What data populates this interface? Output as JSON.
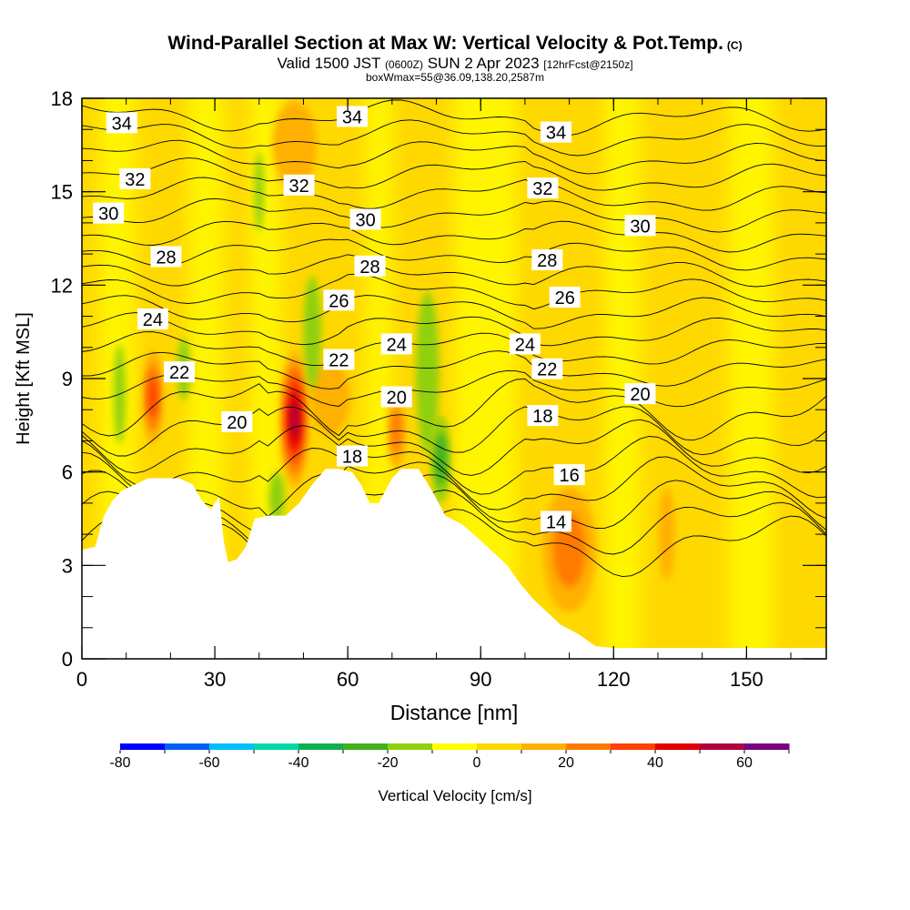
{
  "header": {
    "title": "Wind-Parallel Section at Max W: Vertical Velocity & Pot.Temp.",
    "title_mark": "(C)",
    "valid_prefix": "Valid 1500 JST",
    "valid_z": "(0600Z)",
    "valid_date": "SUN 2 Apr 2023",
    "valid_fcst": "[12hrFcst@2150z]",
    "box_info": "boxWmax=55@36.09,138.20,2587m"
  },
  "chart_data": {
    "type": "heatmap",
    "xlabel": "Distance [nm]",
    "ylabel": "Height [Kft MSL]",
    "xlim": [
      0,
      168
    ],
    "ylim": [
      0,
      18
    ],
    "x_ticks": [
      0,
      30,
      60,
      90,
      120,
      150
    ],
    "y_ticks": [
      0,
      3,
      6,
      9,
      12,
      15,
      18
    ],
    "colorbar": {
      "label": "Vertical Velocity [cm/s]",
      "range": [
        -80,
        70
      ],
      "step": 10,
      "tick_values": [
        -80,
        -60,
        -40,
        -20,
        0,
        20,
        40,
        60
      ],
      "colors": [
        "#0000ff",
        "#0060f0",
        "#00c0ff",
        "#00d8a8",
        "#10b050",
        "#40b020",
        "#90d010",
        "#ffff00",
        "#ffd800",
        "#ffb000",
        "#ff7a00",
        "#ff4000",
        "#e00000",
        "#b00040",
        "#7a0080"
      ]
    },
    "terrain": [
      [
        0,
        3.5
      ],
      [
        3,
        3.6
      ],
      [
        5,
        4.6
      ],
      [
        7,
        5.1
      ],
      [
        9,
        5.4
      ],
      [
        12,
        5.6
      ],
      [
        15,
        5.8
      ],
      [
        18,
        5.8
      ],
      [
        22,
        5.8
      ],
      [
        25,
        5.6
      ],
      [
        27,
        5.1
      ],
      [
        29,
        4.8
      ],
      [
        31,
        5.2
      ],
      [
        32,
        3.8
      ],
      [
        33,
        3.1
      ],
      [
        35,
        3.2
      ],
      [
        37,
        3.6
      ],
      [
        39,
        4.5
      ],
      [
        42,
        4.6
      ],
      [
        46,
        4.6
      ],
      [
        49,
        5.0
      ],
      [
        52,
        5.6
      ],
      [
        55,
        6.1
      ],
      [
        58,
        6.1
      ],
      [
        61,
        6.0
      ],
      [
        63,
        5.6
      ],
      [
        65,
        5.0
      ],
      [
        67,
        5.0
      ],
      [
        70,
        5.8
      ],
      [
        72,
        6.1
      ],
      [
        76,
        6.1
      ],
      [
        79,
        5.4
      ],
      [
        82,
        4.6
      ],
      [
        86,
        4.3
      ],
      [
        90,
        3.8
      ],
      [
        93,
        3.4
      ],
      [
        96,
        3.0
      ],
      [
        99,
        2.4
      ],
      [
        102,
        1.9
      ],
      [
        105,
        1.5
      ],
      [
        108,
        1.1
      ],
      [
        112,
        0.8
      ],
      [
        116,
        0.4
      ],
      [
        120,
        0.35
      ],
      [
        168,
        0.35
      ]
    ],
    "updraft_cells": [
      {
        "x": 48,
        "y": 7.7,
        "rx": 3.2,
        "ry": 2.2,
        "value": 55
      },
      {
        "x": 16,
        "y": 8.4,
        "rx": 2.3,
        "ry": 1.5,
        "value": 30
      },
      {
        "x": 110,
        "y": 3.5,
        "rx": 6.0,
        "ry": 2.0,
        "value": 25
      },
      {
        "x": 71,
        "y": 7.3,
        "rx": 2.0,
        "ry": 1.2,
        "value": 20
      },
      {
        "x": 56,
        "y": 8.4,
        "rx": 4.5,
        "ry": 1.2,
        "value": 15
      },
      {
        "x": 48,
        "y": 16.5,
        "rx": 5.0,
        "ry": 1.4,
        "value": 12
      },
      {
        "x": 132,
        "y": 4.0,
        "rx": 1.8,
        "ry": 1.5,
        "value": 12
      }
    ],
    "downdraft_cells": [
      {
        "x": 8.5,
        "y": 8.5,
        "rx": 1.3,
        "ry": 1.6,
        "value": -15
      },
      {
        "x": 78,
        "y": 9.2,
        "rx": 2.6,
        "ry": 2.6,
        "value": -15
      },
      {
        "x": 81,
        "y": 6.4,
        "rx": 2.2,
        "ry": 1.4,
        "value": -25
      },
      {
        "x": 44,
        "y": 5.2,
        "rx": 1.8,
        "ry": 0.8,
        "value": -12
      },
      {
        "x": 52,
        "y": 10.5,
        "rx": 2.0,
        "ry": 1.8,
        "value": -10
      },
      {
        "x": 23,
        "y": 9.3,
        "rx": 1.5,
        "ry": 1.0,
        "value": -10
      },
      {
        "x": 40,
        "y": 15.0,
        "rx": 1.0,
        "ry": 1.3,
        "value": -15
      }
    ],
    "theta_labels": [
      {
        "text": "34",
        "x": 9,
        "y": 17.2
      },
      {
        "text": "34",
        "x": 61,
        "y": 17.4
      },
      {
        "text": "34",
        "x": 107,
        "y": 16.9
      },
      {
        "text": "32",
        "x": 12,
        "y": 15.4
      },
      {
        "text": "32",
        "x": 49,
        "y": 15.2
      },
      {
        "text": "32",
        "x": 104,
        "y": 15.1
      },
      {
        "text": "30",
        "x": 6,
        "y": 14.3
      },
      {
        "text": "30",
        "x": 64,
        "y": 14.1
      },
      {
        "text": "30",
        "x": 126,
        "y": 13.9
      },
      {
        "text": "28",
        "x": 19,
        "y": 12.9
      },
      {
        "text": "28",
        "x": 65,
        "y": 12.6
      },
      {
        "text": "28",
        "x": 105,
        "y": 12.8
      },
      {
        "text": "26",
        "x": 58,
        "y": 11.5
      },
      {
        "text": "26",
        "x": 109,
        "y": 11.6
      },
      {
        "text": "24",
        "x": 16,
        "y": 10.9
      },
      {
        "text": "24",
        "x": 71,
        "y": 10.1
      },
      {
        "text": "24",
        "x": 100,
        "y": 10.1
      },
      {
        "text": "22",
        "x": 22,
        "y": 9.2
      },
      {
        "text": "22",
        "x": 58,
        "y": 9.6
      },
      {
        "text": "22",
        "x": 105,
        "y": 9.3
      },
      {
        "text": "20",
        "x": 35,
        "y": 7.6
      },
      {
        "text": "20",
        "x": 71,
        "y": 8.4
      },
      {
        "text": "20",
        "x": 126,
        "y": 8.5
      },
      {
        "text": "18",
        "x": 61,
        "y": 6.5
      },
      {
        "text": "18",
        "x": 104,
        "y": 7.8
      },
      {
        "text": "16",
        "x": 110,
        "y": 5.9
      },
      {
        "text": "14",
        "x": 107,
        "y": 4.4
      }
    ]
  }
}
